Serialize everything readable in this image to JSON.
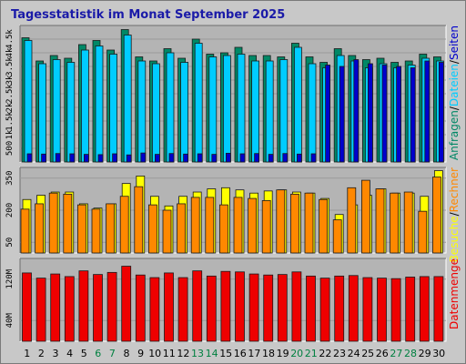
{
  "title": "Tagesstatistik im Monat September 2025",
  "colors": {
    "anfragen": "#008866",
    "dateien": "#00ccff",
    "seiten": "#0000cc",
    "besuche": "#ffff00",
    "rechner": "#ff8800",
    "datenmenge": "#ee0000",
    "weekend": "#008040",
    "weekday": "#000000",
    "title": "#1a1aa8",
    "panel": "#b4b4b4"
  },
  "chart_data": [
    {
      "type": "bar",
      "panel": "hits",
      "ylim": [
        0,
        5000
      ],
      "ytick_values": [
        500,
        1000,
        1500,
        2000,
        2500,
        3000,
        3500,
        4000,
        4500
      ],
      "ytick_labels": [
        "500",
        "1k",
        "1.5k",
        "2k",
        "2.5k",
        "3k",
        "3.5k",
        "4k",
        "4.5k"
      ],
      "legend": [
        {
          "label": "Anfragen",
          "color": "#008866"
        },
        {
          "label": "/",
          "color": "#000000"
        },
        {
          "label": "Dateien",
          "color": "#00ccff"
        },
        {
          "label": "/",
          "color": "#000000"
        },
        {
          "label": "Seiten",
          "color": "#0000cc"
        }
      ],
      "series": [
        {
          "name": "Anfragen",
          "values": [
            4550,
            3700,
            3900,
            3800,
            4300,
            4450,
            4100,
            4850,
            3850,
            3700,
            4150,
            3800,
            4500,
            3950,
            4000,
            4200,
            3900,
            3900,
            3850,
            4350,
            3850,
            3650,
            4150,
            3900,
            3750,
            3800,
            3650,
            3700,
            3950,
            3850
          ]
        },
        {
          "name": "Dateien",
          "values": [
            4450,
            3600,
            3750,
            3650,
            4100,
            4250,
            3950,
            4650,
            3700,
            3600,
            4000,
            3650,
            4350,
            3850,
            3900,
            3950,
            3700,
            3700,
            3750,
            4200,
            3600,
            3450,
            3900,
            3700,
            3450,
            3600,
            3450,
            3550,
            3800,
            3700
          ]
        },
        {
          "name": "Seiten",
          "values": [
            300,
            290,
            310,
            300,
            280,
            270,
            300,
            260,
            330,
            280,
            310,
            290,
            300,
            280,
            320,
            300,
            310,
            280,
            310,
            290,
            300,
            3550,
            3500,
            3750,
            3600,
            3550,
            3500,
            3450,
            3700,
            3650
          ]
        }
      ]
    },
    {
      "type": "bar",
      "panel": "visits",
      "ylim": [
        0,
        400
      ],
      "ytick_values": [
        50,
        200,
        350
      ],
      "ytick_labels": [
        "50",
        "200",
        "350"
      ],
      "legend": [
        {
          "label": "Besuche",
          "color": "#ffff00"
        },
        {
          "label": "/",
          "color": "#000000"
        },
        {
          "label": "Rechner",
          "color": "#ff8800"
        }
      ],
      "series": [
        {
          "name": "Besuche",
          "values": [
            250,
            270,
            285,
            285,
            230,
            210,
            230,
            325,
            360,
            265,
            220,
            265,
            285,
            300,
            305,
            295,
            280,
            290,
            295,
            285,
            280,
            255,
            180,
            225,
            270,
            300,
            280,
            280,
            265,
            385
          ]
        },
        {
          "name": "Rechner",
          "values": [
            205,
            230,
            280,
            275,
            225,
            205,
            230,
            265,
            310,
            225,
            200,
            230,
            260,
            260,
            225,
            260,
            255,
            245,
            295,
            275,
            280,
            250,
            155,
            305,
            340,
            300,
            280,
            285,
            195,
            355
          ]
        }
      ]
    },
    {
      "type": "bar",
      "panel": "volume",
      "ylim": [
        0,
        160
      ],
      "ytick_values": [
        40,
        120
      ],
      "ytick_labels": [
        "40M",
        "120M"
      ],
      "legend": [
        {
          "label": "Datenmenge",
          "color": "#ee0000"
        }
      ],
      "series": [
        {
          "name": "Datenmenge",
          "values": [
            132,
            122,
            130,
            125,
            136,
            129,
            133,
            145,
            128,
            123,
            132,
            123,
            136,
            126,
            135,
            134,
            130,
            128,
            129,
            134,
            126,
            122,
            126,
            127,
            123,
            122,
            121,
            124,
            125,
            125
          ]
        }
      ]
    }
  ],
  "x_labels": [
    "1",
    "2",
    "3",
    "4",
    "5",
    "6",
    "7",
    "8",
    "9",
    "10",
    "11",
    "12",
    "13",
    "14",
    "15",
    "16",
    "17",
    "18",
    "19",
    "20",
    "21",
    "22",
    "23",
    "24",
    "25",
    "26",
    "27",
    "28",
    "29",
    "30"
  ],
  "weekend_days": [
    6,
    7,
    13,
    14,
    20,
    21,
    27,
    28
  ]
}
